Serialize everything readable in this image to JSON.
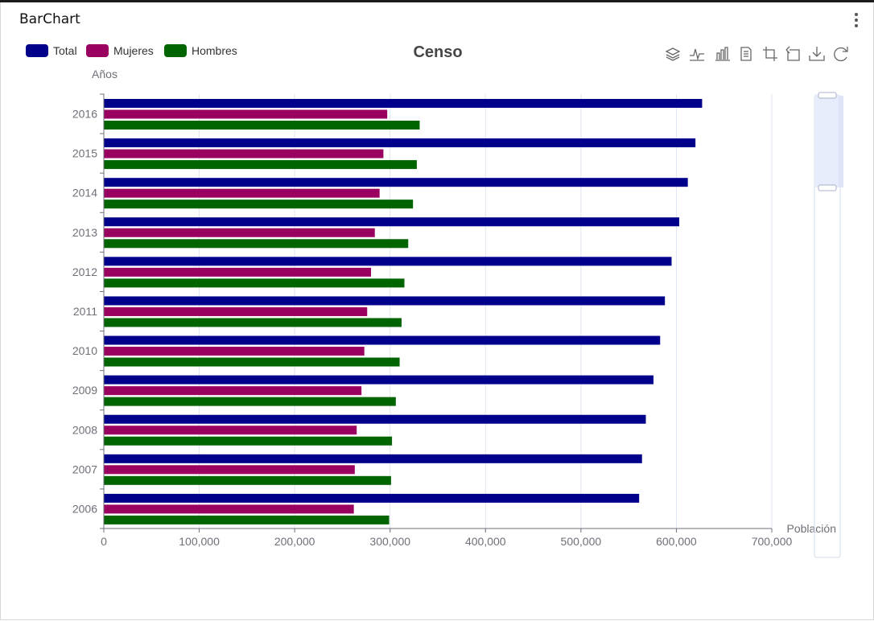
{
  "card": {
    "title": "BarChart"
  },
  "toolbox": {
    "icons": [
      "stack-icon",
      "line-icon",
      "bar-icon",
      "data-view-icon",
      "crop-icon",
      "restore-crop-icon",
      "download-icon",
      "refresh-icon"
    ]
  },
  "colors": {
    "Total": "#00008b",
    "Mujeres": "#9a0060",
    "Hombres": "#006400",
    "axis": "#6e7079",
    "grid": "#e0e6f1",
    "zoom_fill": "#e4ebfa",
    "zoom_border": "#d2dbee"
  },
  "chart_data": {
    "type": "bar",
    "orientation": "horizontal",
    "title": "Censo",
    "xlabel": "Población",
    "ylabel": "Años",
    "xlim": [
      0,
      700000
    ],
    "x_ticks": [
      "0",
      "100,000",
      "200,000",
      "300,000",
      "400,000",
      "500,000",
      "600,000",
      "700,000"
    ],
    "categories": [
      "2006",
      "2007",
      "2008",
      "2009",
      "2010",
      "2011",
      "2012",
      "2013",
      "2014",
      "2015",
      "2016"
    ],
    "series": [
      {
        "name": "Total",
        "values": [
          561000,
          564000,
          568000,
          576000,
          583000,
          588000,
          595000,
          603000,
          612000,
          620000,
          627000
        ]
      },
      {
        "name": "Mujeres",
        "values": [
          262000,
          263000,
          265000,
          270000,
          273000,
          276000,
          280000,
          284000,
          289000,
          293000,
          297000
        ]
      },
      {
        "name": "Hombres",
        "values": [
          299000,
          301000,
          302000,
          306000,
          310000,
          312000,
          315000,
          319000,
          324000,
          328000,
          331000
        ]
      }
    ],
    "legend": "top-left",
    "grid": true,
    "datazoom": {
      "orientation": "vertical",
      "range_percent": [
        80,
        100
      ]
    }
  }
}
